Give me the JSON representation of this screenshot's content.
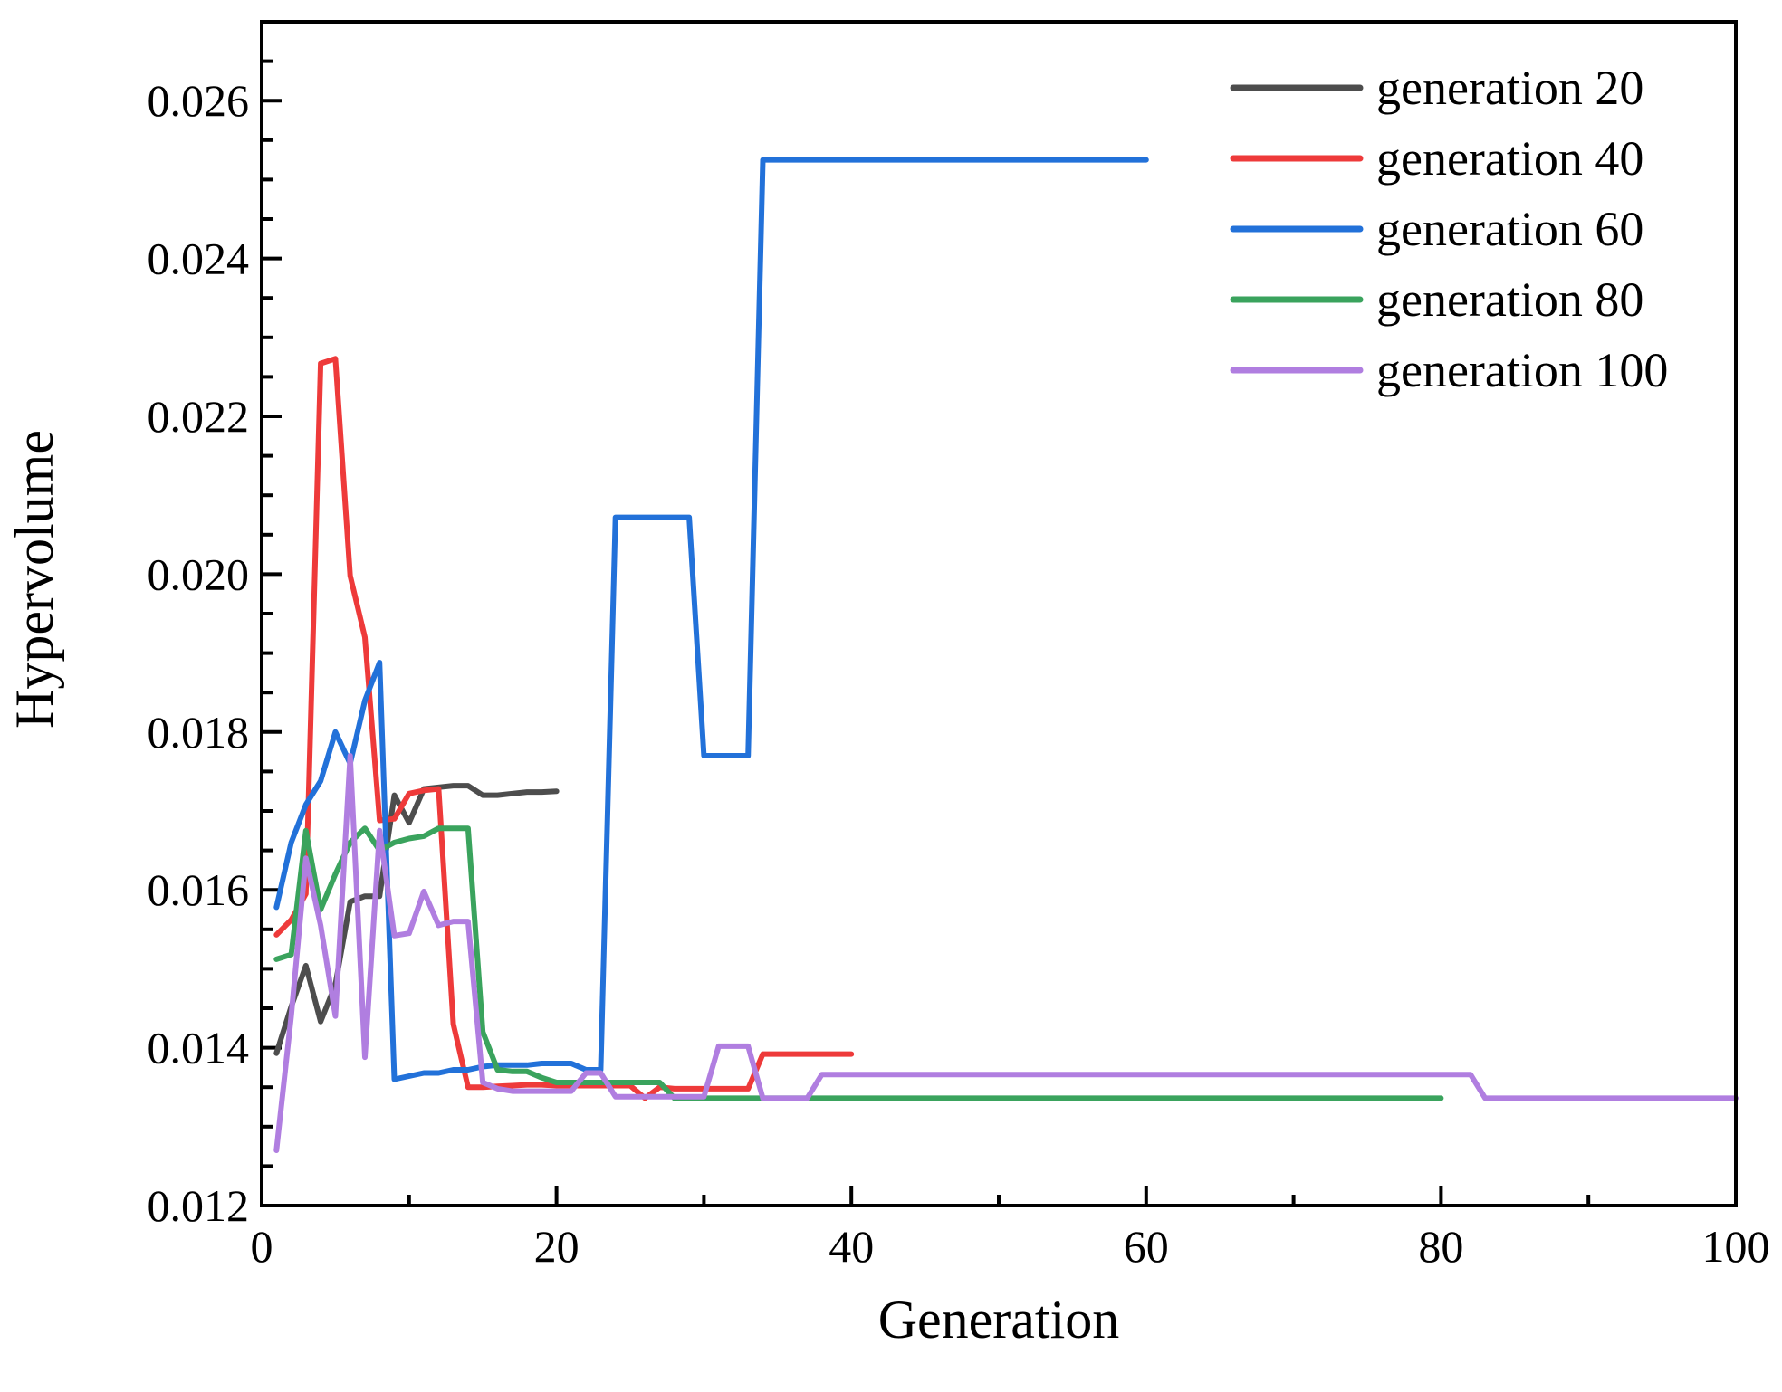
{
  "chart_data": {
    "type": "line",
    "title": "",
    "xlabel": "Generation",
    "ylabel": "Hypervolume",
    "xlim": [
      0,
      100
    ],
    "ylim": [
      0.012,
      0.027
    ],
    "x_ticks": [
      "0",
      "20",
      "40",
      "60",
      "80",
      "100"
    ],
    "x_tick_values": [
      0,
      20,
      40,
      60,
      80,
      100
    ],
    "y_ticks": [
      "0.012",
      "0.014",
      "0.016",
      "0.018",
      "0.020",
      "0.022",
      "0.024",
      "0.026"
    ],
    "y_tick_values": [
      0.012,
      0.014,
      0.016,
      0.018,
      0.02,
      0.022,
      0.024,
      0.026
    ],
    "grid": false,
    "legend_position": "top-right",
    "series": [
      {
        "name": "generation 20",
        "color": "#4d4d4d",
        "x": [
          1,
          2,
          3,
          4,
          5,
          6,
          7,
          8,
          9,
          10,
          11,
          12,
          13,
          14,
          15,
          16,
          17,
          18,
          19,
          20
        ],
        "y": [
          0.01393,
          0.01452,
          0.01504,
          0.01433,
          0.0148,
          0.01585,
          0.01592,
          0.01592,
          0.0172,
          0.01685,
          0.01728,
          0.0173,
          0.01732,
          0.01732,
          0.0172,
          0.0172,
          0.01722,
          0.01724,
          0.01724,
          0.01725
        ]
      },
      {
        "name": "generation 40",
        "color": "#ee3a3a",
        "x": [
          1,
          2,
          3,
          4,
          5,
          6,
          7,
          8,
          9,
          10,
          11,
          12,
          13,
          14,
          15,
          16,
          17,
          18,
          19,
          20,
          21,
          22,
          23,
          24,
          25,
          26,
          27,
          28,
          29,
          30,
          31,
          32,
          33,
          34,
          35,
          36,
          37,
          38,
          39,
          40
        ],
        "y": [
          0.01543,
          0.01562,
          0.01595,
          0.02267,
          0.02273,
          0.01998,
          0.0192,
          0.01688,
          0.0169,
          0.01722,
          0.01726,
          0.01728,
          0.0143,
          0.0135,
          0.0135,
          0.01351,
          0.01352,
          0.01353,
          0.01353,
          0.01352,
          0.01352,
          0.01352,
          0.01352,
          0.01352,
          0.01352,
          0.01336,
          0.0135,
          0.01348,
          0.01348,
          0.01348,
          0.01348,
          0.01348,
          0.01348,
          0.01392,
          0.01392,
          0.01392,
          0.01392,
          0.01392,
          0.01392,
          0.01392
        ]
      },
      {
        "name": "generation 60",
        "color": "#2271d9",
        "x": [
          1,
          2,
          3,
          4,
          5,
          6,
          7,
          8,
          9,
          10,
          11,
          12,
          13,
          14,
          15,
          16,
          17,
          18,
          19,
          20,
          21,
          22,
          23,
          24,
          25,
          26,
          27,
          28,
          29,
          30,
          31,
          32,
          33,
          34,
          35,
          36,
          37,
          38,
          39,
          40,
          45,
          50,
          55,
          60
        ],
        "y": [
          0.01578,
          0.0166,
          0.01708,
          0.01738,
          0.018,
          0.0176,
          0.0184,
          0.01888,
          0.0136,
          0.01364,
          0.01368,
          0.01368,
          0.01372,
          0.01372,
          0.01376,
          0.01378,
          0.01378,
          0.01378,
          0.0138,
          0.0138,
          0.0138,
          0.01372,
          0.01372,
          0.02072,
          0.02072,
          0.02072,
          0.02072,
          0.02072,
          0.02072,
          0.0177,
          0.0177,
          0.0177,
          0.0177,
          0.02525,
          0.02525,
          0.02525,
          0.02525,
          0.02525,
          0.02525,
          0.02525,
          0.02525,
          0.02525,
          0.02525,
          0.02525
        ]
      },
      {
        "name": "generation 80",
        "color": "#3aa35d",
        "x": [
          1,
          2,
          3,
          4,
          5,
          6,
          7,
          8,
          9,
          10,
          11,
          12,
          13,
          14,
          15,
          16,
          17,
          18,
          19,
          20,
          21,
          22,
          23,
          24,
          25,
          26,
          27,
          28,
          29,
          30,
          40,
          50,
          60,
          70,
          80
        ],
        "y": [
          0.01512,
          0.01518,
          0.01675,
          0.01575,
          0.0162,
          0.0166,
          0.01678,
          0.0165,
          0.0166,
          0.01665,
          0.01668,
          0.01678,
          0.01678,
          0.01678,
          0.0142,
          0.01372,
          0.0137,
          0.0137,
          0.01362,
          0.01356,
          0.01356,
          0.01356,
          0.01356,
          0.01356,
          0.01356,
          0.01356,
          0.01356,
          0.01336,
          0.01336,
          0.01336,
          0.01336,
          0.01336,
          0.01336,
          0.01336,
          0.01336
        ]
      },
      {
        "name": "generation 100",
        "color": "#b07ee0",
        "x": [
          1,
          2,
          3,
          4,
          5,
          6,
          7,
          8,
          9,
          10,
          11,
          12,
          13,
          14,
          15,
          16,
          17,
          18,
          19,
          20,
          21,
          22,
          23,
          24,
          25,
          26,
          27,
          28,
          29,
          30,
          31,
          32,
          33,
          34,
          35,
          36,
          37,
          38,
          40,
          50,
          60,
          70,
          80,
          82,
          83,
          90,
          100
        ],
        "y": [
          0.0127,
          0.0144,
          0.0164,
          0.01555,
          0.0144,
          0.0177,
          0.01388,
          0.01675,
          0.01542,
          0.01545,
          0.01598,
          0.01555,
          0.0156,
          0.0156,
          0.01356,
          0.01348,
          0.01345,
          0.01345,
          0.01345,
          0.01345,
          0.01345,
          0.01368,
          0.01368,
          0.01338,
          0.01338,
          0.01338,
          0.01338,
          0.01338,
          0.01338,
          0.01338,
          0.01402,
          0.01402,
          0.01402,
          0.01336,
          0.01336,
          0.01336,
          0.01336,
          0.01366,
          0.01366,
          0.01366,
          0.01366,
          0.01366,
          0.01366,
          0.01366,
          0.01336,
          0.01336,
          0.01336
        ]
      }
    ]
  }
}
